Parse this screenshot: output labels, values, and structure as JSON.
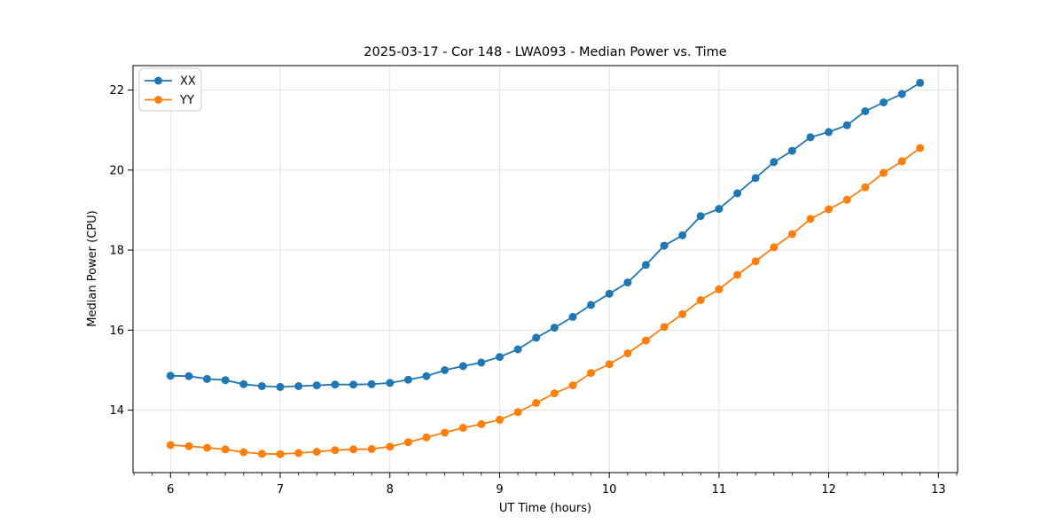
{
  "chart_data": {
    "type": "line",
    "title": "2025-03-17 - Cor 148 - LWA093 - Median Power vs. Time",
    "xlabel": "UT Time (hours)",
    "ylabel": "Median Power (CPU)",
    "grid": true,
    "legend_position": "upper left",
    "xlim": [
      5.658,
      13.175
    ],
    "ylim": [
      12.44,
      22.61
    ],
    "xticks": [
      6,
      7,
      8,
      9,
      10,
      11,
      12,
      13
    ],
    "yticks": [
      14,
      16,
      18,
      20,
      22
    ],
    "x_minor_step": 0.1667,
    "background_color": "#ffffff",
    "grid_color": "#e0e0e0",
    "spine_color": "#000000",
    "x": [
      6.0,
      6.167,
      6.333,
      6.5,
      6.667,
      6.833,
      7.0,
      7.167,
      7.333,
      7.5,
      7.667,
      7.833,
      8.0,
      8.167,
      8.333,
      8.5,
      8.667,
      8.833,
      9.0,
      9.167,
      9.333,
      9.5,
      9.667,
      9.833,
      10.0,
      10.167,
      10.333,
      10.5,
      10.667,
      10.833,
      11.0,
      11.167,
      11.333,
      11.5,
      11.667,
      11.833,
      12.0,
      12.167,
      12.333,
      12.5,
      12.667,
      12.833
    ],
    "series": [
      {
        "name": "XX",
        "color": "#1f77b4",
        "values": [
          14.86,
          14.85,
          14.78,
          14.75,
          14.65,
          14.6,
          14.58,
          14.6,
          14.62,
          14.64,
          14.64,
          14.65,
          14.68,
          14.76,
          14.85,
          15.0,
          15.1,
          15.19,
          15.33,
          15.52,
          15.81,
          16.06,
          16.33,
          16.63,
          16.91,
          17.19,
          17.63,
          18.11,
          18.37,
          18.85,
          19.03,
          19.42,
          19.8,
          20.2,
          20.48,
          20.82,
          20.95,
          21.12,
          21.47,
          21.69,
          21.9,
          22.18
        ]
      },
      {
        "name": "YY",
        "color": "#ff7f0e",
        "values": [
          13.13,
          13.1,
          13.06,
          13.02,
          12.95,
          12.91,
          12.9,
          12.93,
          12.96,
          13.0,
          13.02,
          13.03,
          13.09,
          13.2,
          13.32,
          13.44,
          13.56,
          13.65,
          13.76,
          13.95,
          14.18,
          14.42,
          14.62,
          14.93,
          15.15,
          15.42,
          15.74,
          16.08,
          16.4,
          16.75,
          17.02,
          17.38,
          17.72,
          18.07,
          18.4,
          18.78,
          19.02,
          19.26,
          19.57,
          19.93,
          20.22,
          20.55
        ]
      }
    ]
  }
}
